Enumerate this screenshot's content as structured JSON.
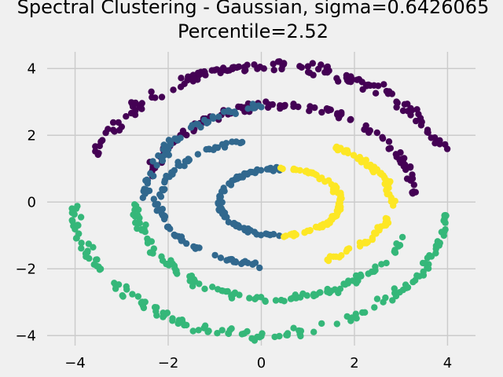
{
  "chart_data": {
    "type": "scatter",
    "title_line1": "Spectral Clustering - Gaussian, sigma=0.6426065",
    "title_line2": "Percentile=2.52",
    "xlabel": "",
    "ylabel": "",
    "xlim": [
      -4.6,
      4.6
    ],
    "ylim": [
      -4.3,
      4.5
    ],
    "xticks": [
      -4,
      -2,
      0,
      2,
      4
    ],
    "yticks": [
      -4,
      -2,
      0,
      2,
      4
    ],
    "xtick_labels": [
      "−4",
      "−2",
      "0",
      "2",
      "4"
    ],
    "ytick_labels": [
      "−4",
      "−2",
      "0",
      "2",
      "4"
    ],
    "grid": true,
    "background": "#f0f0f0",
    "grid_color": "#cbcbcb",
    "clusters": [
      {
        "color": "#440154",
        "shape": "outer ellipse, upper half",
        "center": [
          0.2,
          0.0
        ],
        "radii": [
          4.0,
          4.1
        ],
        "angle_range_deg": [
          20,
          160
        ],
        "count": 150
      },
      {
        "color": "#440154",
        "shape": "middle ellipse, upper half",
        "center": [
          0.4,
          0.0
        ],
        "radii": [
          2.9,
          2.9
        ],
        "angle_range_deg": [
          5,
          165
        ],
        "count": 120
      },
      {
        "color": "#31688e",
        "shape": "middle ellipse, upper-left arc",
        "center": [
          0.4,
          0.0
        ],
        "radii": [
          2.9,
          2.9
        ],
        "angle_range_deg": [
          95,
          180
        ],
        "count": 60
      },
      {
        "color": "#31688e",
        "shape": "inner ring, left half",
        "center": [
          0.4,
          0.0
        ],
        "radii": [
          1.3,
          1.0
        ],
        "angle_range_deg": [
          90,
          270
        ],
        "count": 80
      },
      {
        "color": "#31688e",
        "shape": "left ellipse arc",
        "center": [
          0.3,
          0.0
        ],
        "radii": [
          2.5,
          1.9
        ],
        "angle_range_deg": [
          105,
          265
        ],
        "count": 80
      },
      {
        "color": "#fde725",
        "shape": "inner ring, right half",
        "center": [
          0.4,
          0.0
        ],
        "radii": [
          1.3,
          1.0
        ],
        "angle_range_deg": [
          -90,
          90
        ],
        "count": 90
      },
      {
        "color": "#fde725",
        "shape": "middle ring, right arc",
        "center": [
          0.3,
          0.0
        ],
        "radii": [
          2.5,
          1.9
        ],
        "angle_range_deg": [
          -70,
          60
        ],
        "count": 80
      },
      {
        "color": "#35b779",
        "shape": "outer ellipse, lower half",
        "center": [
          0.0,
          0.0
        ],
        "radii": [
          4.0,
          4.0
        ],
        "angle_range_deg": [
          180,
          355
        ],
        "count": 150
      },
      {
        "color": "#35b779",
        "shape": "middle ellipse, lower-left arc",
        "center": [
          0.3,
          0.0
        ],
        "radii": [
          3.0,
          2.9
        ],
        "angle_range_deg": [
          180,
          340
        ],
        "count": 110
      }
    ]
  }
}
